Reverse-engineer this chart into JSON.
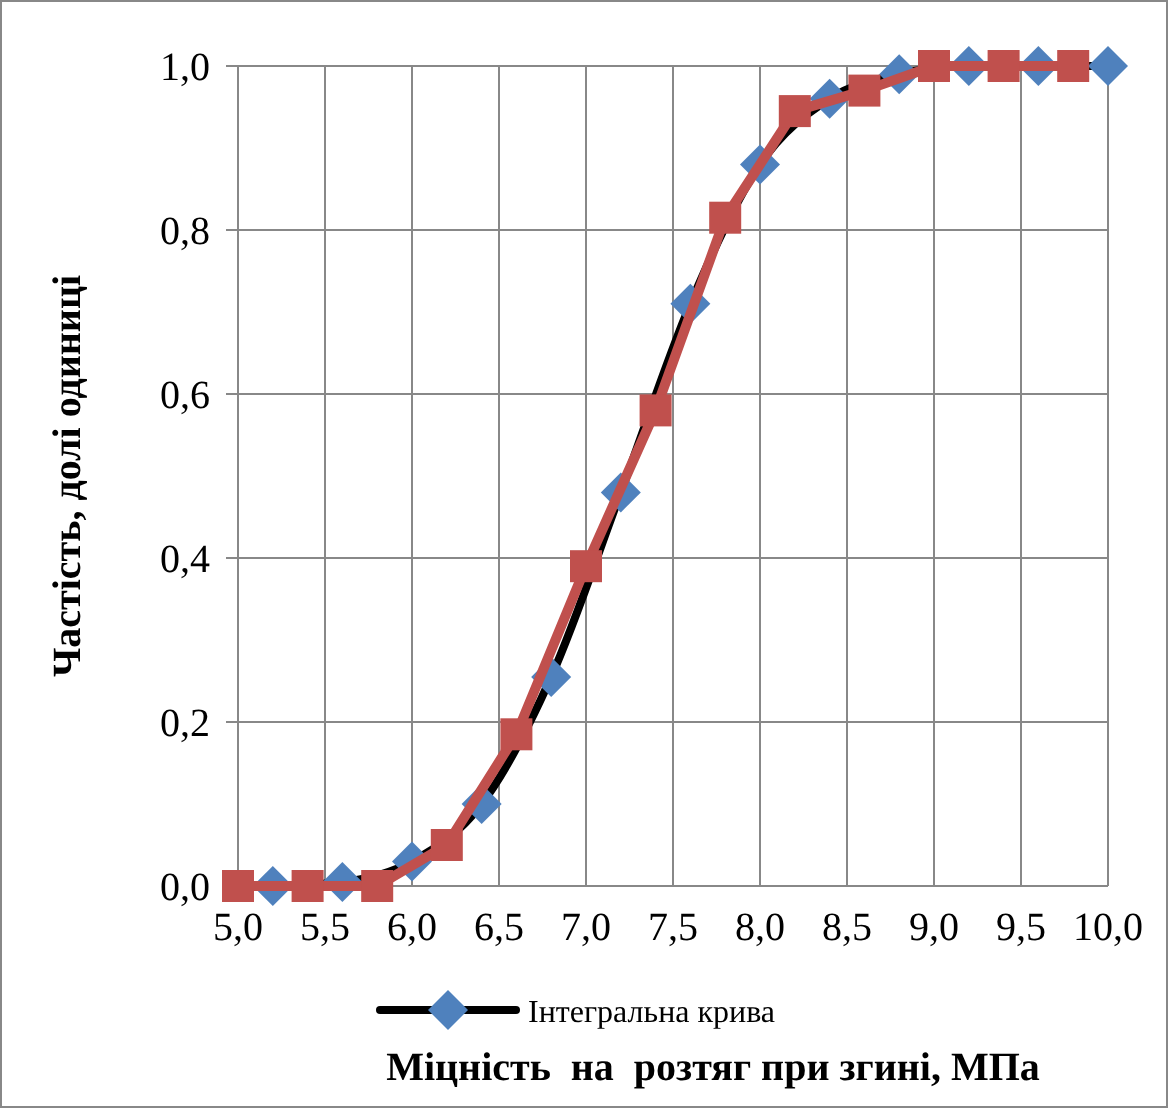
{
  "chart_data": {
    "type": "line",
    "xlabel": "Міцність  на  розтяг при згині, МПа",
    "ylabel": "Частість, долі одиниці",
    "xlim": [
      5,
      10
    ],
    "xticks": [
      {
        "value": 5,
        "label": "5,0"
      },
      {
        "value": 5.5,
        "label": "5,5"
      },
      {
        "value": 6,
        "label": "6,0"
      },
      {
        "value": 6.5,
        "label": "6,5"
      },
      {
        "value": 7,
        "label": "7,0"
      },
      {
        "value": 7.5,
        "label": "7,5"
      },
      {
        "value": 8,
        "label": "8,0"
      },
      {
        "value": 8.5,
        "label": "8,5"
      },
      {
        "value": 9,
        "label": "9,0"
      },
      {
        "value": 9.5,
        "label": "9,5"
      },
      {
        "value": 10,
        "label": "10,0"
      }
    ],
    "ylim": [
      0,
      1
    ],
    "yticks": [
      {
        "value": 0,
        "label": "0,0"
      },
      {
        "value": 0.2,
        "label": "0,2"
      },
      {
        "value": 0.4,
        "label": "0,4"
      },
      {
        "value": 0.6,
        "label": "0,6"
      },
      {
        "value": 0.8,
        "label": "0,8"
      },
      {
        "value": 1,
        "label": "1,0"
      }
    ],
    "grid": true,
    "legend": "bottom",
    "series": [
      {
        "name": "Інтегральна крива",
        "color": "#000000",
        "marker": "diamond",
        "x": [
          5.2,
          5.6,
          6.0,
          6.4,
          6.8,
          7.2,
          7.6,
          8.0,
          8.4,
          8.8,
          9.2,
          9.6,
          10.0
        ],
        "values": [
          0,
          0.005,
          0.03,
          0.1,
          0.255,
          0.48,
          0.71,
          0.88,
          0.96,
          0.99,
          1,
          1,
          1
        ]
      },
      {
        "color": "#c0504d",
        "marker": "square",
        "x": [
          5.0,
          5.4,
          5.8,
          6.2,
          6.6,
          7.0,
          7.4,
          7.8,
          8.2,
          8.6,
          9.0,
          9.4,
          9.8
        ],
        "values": [
          0,
          0,
          0,
          0.05,
          0.185,
          0.39,
          0.58,
          0.815,
          0.945,
          0.97,
          1,
          1,
          1
        ]
      }
    ]
  }
}
